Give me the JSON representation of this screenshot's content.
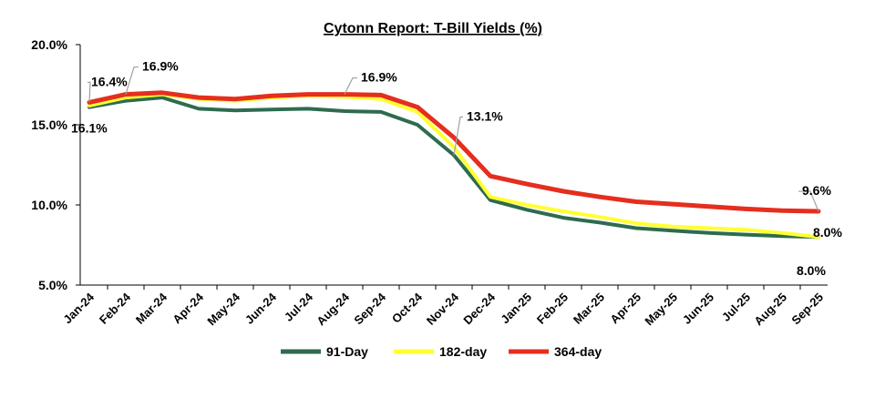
{
  "chart_data": {
    "type": "line",
    "title": "Cytonn Report: T-Bill Yields (%)",
    "xlabel": "",
    "ylabel": "",
    "ylim": [
      5.0,
      20.0
    ],
    "y_ticks": [
      "5.0%",
      "10.0%",
      "15.0%",
      "20.0%"
    ],
    "y_tick_values": [
      5,
      10,
      15,
      20
    ],
    "categories": [
      "Jan-24",
      "Feb-24",
      "Mar-24",
      "Apr-24",
      "May-24",
      "Jun-24",
      "Jul-24",
      "Aug-24",
      "Sep-24",
      "Oct-24",
      "Nov-24",
      "Dec-24",
      "Jan-25",
      "Feb-25",
      "Mar-25",
      "Apr-25",
      "May-25",
      "Jun-25",
      "Jul-25",
      "Aug-25",
      "Sep-25"
    ],
    "grid": false,
    "legend_position": "bottom",
    "series": [
      {
        "name": "91-Day",
        "color": "#2e6b4f",
        "values": [
          16.1,
          16.5,
          16.7,
          16.0,
          15.9,
          15.95,
          16.0,
          15.85,
          15.8,
          15.0,
          13.1,
          10.3,
          9.7,
          9.2,
          8.9,
          8.55,
          8.4,
          8.25,
          8.15,
          8.05,
          8.0
        ]
      },
      {
        "name": "182-day",
        "color": "#ffff33",
        "values": [
          16.2,
          16.7,
          16.9,
          16.6,
          16.5,
          16.7,
          16.8,
          16.75,
          16.6,
          15.8,
          13.6,
          10.5,
          10.0,
          9.6,
          9.25,
          8.85,
          8.65,
          8.55,
          8.45,
          8.25,
          8.0
        ]
      },
      {
        "name": "364-day",
        "color": "#e52e1e",
        "values": [
          16.4,
          16.9,
          17.0,
          16.7,
          16.6,
          16.8,
          16.9,
          16.9,
          16.85,
          16.1,
          14.2,
          11.8,
          11.3,
          10.85,
          10.5,
          10.2,
          10.05,
          9.9,
          9.75,
          9.65,
          9.6
        ]
      }
    ],
    "annotations": [
      {
        "text": "16.4%",
        "series": 2,
        "index": 0,
        "dx": 2,
        "dy": -28,
        "leader": true
      },
      {
        "text": "16.1%",
        "series": 0,
        "index": 0,
        "dx": -20,
        "dy": 18,
        "leader": false
      },
      {
        "text": "16.9%",
        "series": 2,
        "index": 1,
        "dx": 18,
        "dy": -36,
        "leader": true
      },
      {
        "text": "16.9%",
        "series": 2,
        "index": 7,
        "dx": 18,
        "dy": -24,
        "leader": true
      },
      {
        "text": "13.1%",
        "series": 0,
        "index": 10,
        "dx": 14,
        "dy": -48,
        "leader": true
      },
      {
        "text": "9.6%",
        "series": 2,
        "index": 20,
        "dx": -18,
        "dy": -28,
        "leader": true
      },
      {
        "text": "8.0%",
        "series": 1,
        "index": 20,
        "dx": -6,
        "dy": -10,
        "leader": false
      },
      {
        "text": "8.0%",
        "series": 0,
        "index": 20,
        "dx": -24,
        "dy": 32,
        "leader": false
      }
    ]
  }
}
